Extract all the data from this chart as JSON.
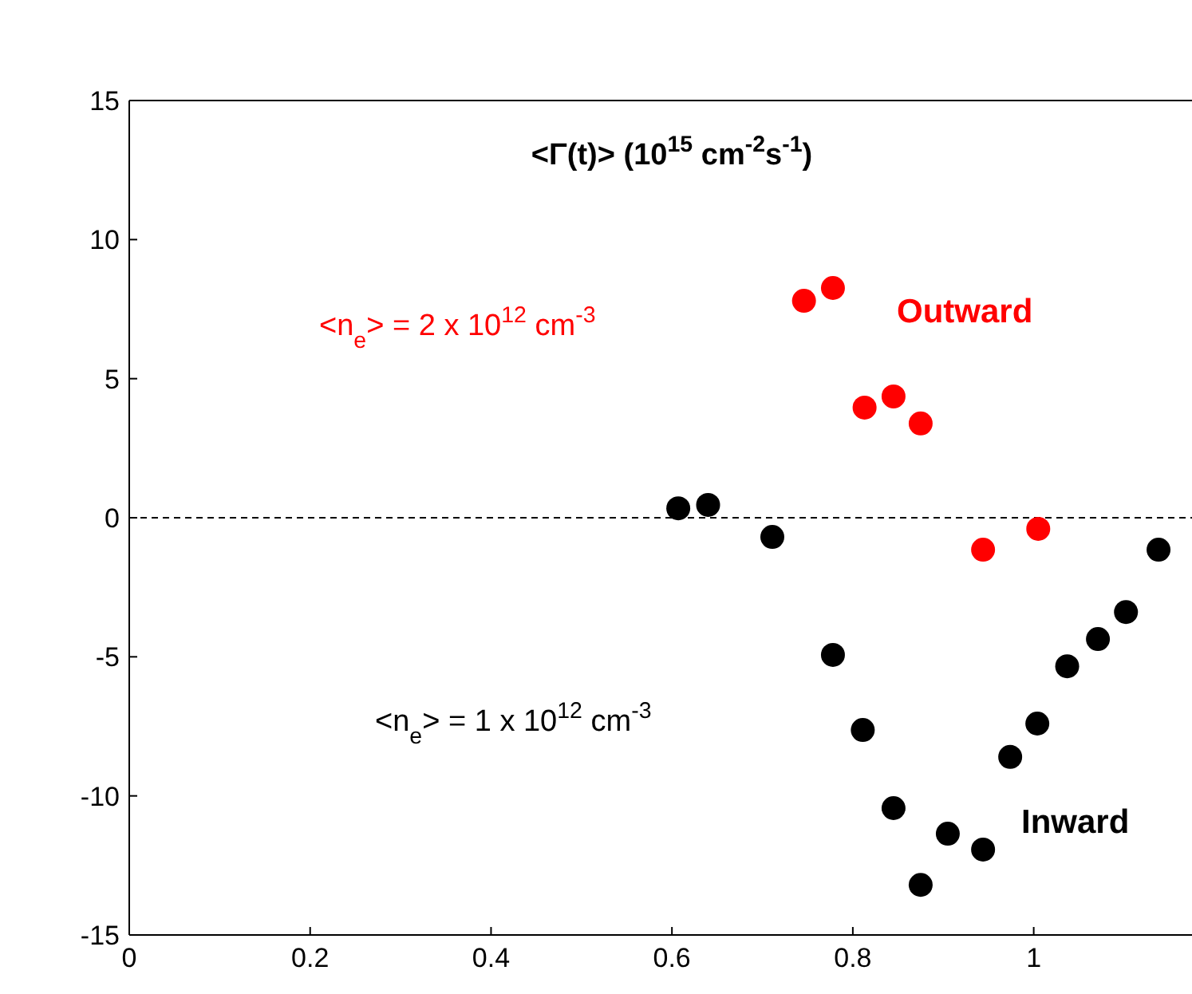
{
  "chart_data": {
    "type": "scatter",
    "title": "<Γ(t)> (10$^{15}$ cm$^{-2}$s$^{-1}$)",
    "xlim": [
      0,
      1.175
    ],
    "xticks": [
      0,
      0.2,
      0.4,
      0.6,
      0.8,
      1
    ],
    "ylim": [
      -15,
      15
    ],
    "yticks": [
      -15,
      -10,
      -5,
      0,
      5,
      10,
      15
    ],
    "grid": false,
    "marker": "circle",
    "ref_lines": [
      {
        "axis": "y",
        "value": 0,
        "color": "#000000",
        "line_style": "dashed"
      }
    ],
    "annotations": [
      "Outward",
      "Inward"
    ],
    "series": [
      {
        "name": "<n$_{e}$> = 2 x 10$^{12}$ cm$^{-3}$",
        "color": "#ff0000",
        "x": [
          0.746,
          0.778,
          0.813,
          0.845,
          0.875,
          0.944,
          1.005
        ],
        "values": [
          7.8,
          8.26,
          3.96,
          4.36,
          3.39,
          -1.15,
          -0.4
        ]
      },
      {
        "name": "<n$_{e}$> = 1 x 10$^{12}$ cm$^{-3}$",
        "color": "#000000",
        "x": [
          0.607,
          0.64,
          0.711,
          0.778,
          0.811,
          0.845,
          0.875,
          0.905,
          0.944,
          0.974,
          1.004,
          1.037,
          1.071,
          1.102,
          1.138
        ],
        "values": [
          0.34,
          0.46,
          -0.69,
          -4.93,
          -7.63,
          -10.44,
          -13.2,
          -11.36,
          -11.93,
          -8.6,
          -7.4,
          -5.34,
          -4.36,
          -3.39,
          -1.15
        ]
      }
    ]
  }
}
